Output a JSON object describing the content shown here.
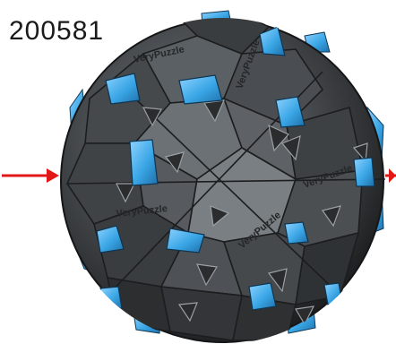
{
  "label": "200581",
  "logo_text": "VeryPuzzle",
  "colors": {
    "background": "#ffffff",
    "body_dark": "#2f3133",
    "body_mid": "#555a5e",
    "body_light": "#8a8f93",
    "accent_blue": "#3aa6e6",
    "arrow_red": "#e01818"
  },
  "icons": [
    "left-arrow-icon",
    "right-arrow-icon"
  ]
}
